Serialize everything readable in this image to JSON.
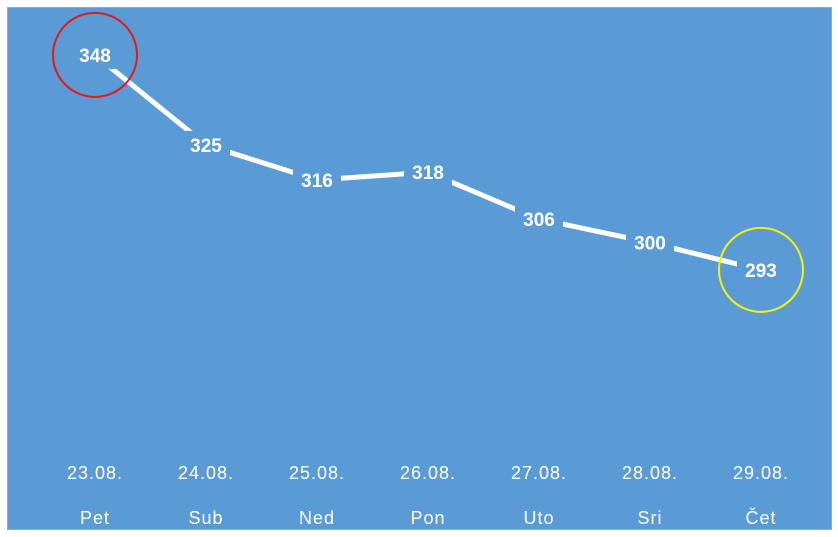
{
  "chart_data": {
    "type": "line",
    "categories": [
      "23.08.",
      "24.08.",
      "25.08.",
      "26.08.",
      "27.08.",
      "28.08.",
      "29.08."
    ],
    "weekdays": [
      "Pet",
      "Sub",
      "Ned",
      "Pon",
      "Uto",
      "Sri",
      "Čet"
    ],
    "series": [
      {
        "values": [
          348,
          325,
          316,
          318,
          306,
          300,
          293
        ]
      }
    ],
    "ylim": [
      250,
      360
    ],
    "grid": false,
    "legend": "none",
    "highlights": [
      {
        "category": "23.08.",
        "ring_color": "#e8161a",
        "meaning": "maximum"
      },
      {
        "category": "29.08.",
        "ring_color": "#f2f20a",
        "meaning": "minimum"
      }
    ]
  },
  "colors": {
    "background": "#5b9bd5",
    "line": "#ffffff",
    "labels": "#ffffff"
  }
}
